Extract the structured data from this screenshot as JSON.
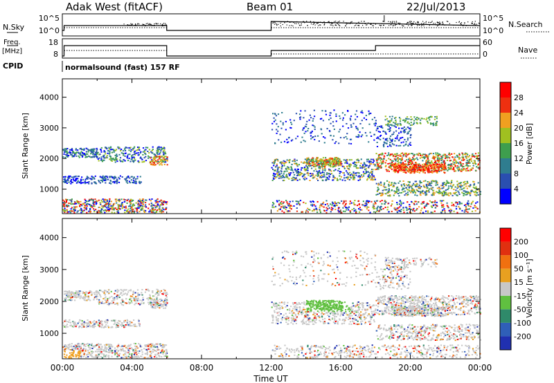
{
  "header": {
    "station": "Adak West (fitACF)",
    "beam": "Beam 01",
    "date": "22/Jul/2013"
  },
  "left_labels": {
    "nsky": "N.Sky",
    "freq": "Freq.",
    "mhz": "[MHz]",
    "cpid": "CPID"
  },
  "right_labels": {
    "nsearch": "N.Search",
    "nave": "Nave"
  },
  "cpid_text": "normalsound (fast) 157 RF",
  "noise_panel": {
    "left_ticks": [
      "10^5",
      "10^0"
    ],
    "right_ticks": [
      "10^5",
      "10^0"
    ]
  },
  "freq_panel": {
    "left_ticks": [
      "18",
      "8"
    ],
    "right_ticks": [
      "60",
      "0"
    ]
  },
  "chart_data": [
    {
      "type": "heatmap",
      "title": "Power",
      "ylabel": "Slant Range [km]",
      "xlabel": "Time UT",
      "x_ticks": [
        "00:00",
        "04:00",
        "08:00",
        "12:00",
        "16:00",
        "20:00",
        "00:00"
      ],
      "y_ticks": [
        "1000",
        "2000",
        "3000",
        "4000"
      ],
      "ylim": [
        200,
        4600
      ],
      "colorbar": {
        "label": "Power [dB]",
        "ticks": [
          "4",
          "8",
          "12",
          "16",
          "20",
          "24",
          "28"
        ],
        "colors": [
          "#0000ff",
          "#2a4fb0",
          "#2f7d8f",
          "#3e9e4e",
          "#a0c020",
          "#f0a020",
          "#ee3010",
          "#ff0000"
        ]
      },
      "data_gap_hours": [
        6.0,
        12.0
      ]
    },
    {
      "type": "heatmap",
      "title": "Velocity",
      "ylabel": "Slant Range [km]",
      "xlabel": "Time UT",
      "x_ticks": [
        "00:00",
        "04:00",
        "08:00",
        "12:00",
        "16:00",
        "20:00",
        "00:00"
      ],
      "y_ticks": [
        "1000",
        "2000",
        "3000",
        "4000"
      ],
      "ylim": [
        200,
        4600
      ],
      "colorbar": {
        "label": "Velocity [m s⁻¹]",
        "ticks": [
          "200",
          "100",
          "50",
          "15",
          "-15",
          "-50",
          "-100",
          "-200"
        ],
        "colors": [
          "#2030b0",
          "#2f5fb8",
          "#2f8a6a",
          "#60c040",
          "#c8c8c8",
          "#e8a020",
          "#f07010",
          "#e03010",
          "#ff0000"
        ]
      },
      "data_gap_hours": [
        6.0,
        12.0
      ]
    }
  ],
  "x_axis": {
    "ticks": [
      "00:00",
      "04:00",
      "08:00",
      "12:00",
      "16:00",
      "20:00",
      "00:00"
    ],
    "label": "Time UT"
  }
}
